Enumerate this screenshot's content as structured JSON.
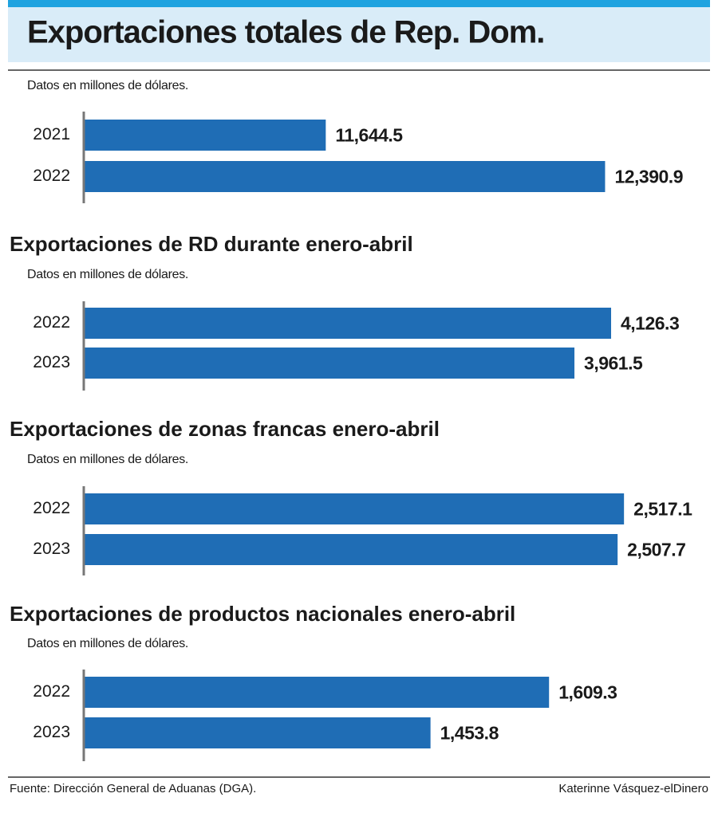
{
  "chart_data": [
    {
      "type": "bar",
      "orientation": "horizontal",
      "title": "Exportaciones totales de Rep. Dom.",
      "subtitle": "Datos en millones de dólares.",
      "categories": [
        "2021",
        "2022"
      ],
      "values": [
        11644.5,
        12390.9
      ],
      "value_labels": [
        "11,644.5",
        "12,390.9"
      ],
      "color": "#1f6db5",
      "xlim": [
        11000,
        12650
      ]
    },
    {
      "type": "bar",
      "orientation": "horizontal",
      "title": "Exportaciones de RD durante enero-abril",
      "subtitle": "Datos en millones de dólares.",
      "categories": [
        "2022",
        "2023"
      ],
      "values": [
        4126.3,
        3961.5
      ],
      "value_labels": [
        "4,126.3",
        "3,961.5"
      ],
      "color": "#1f6db5",
      "xlim": [
        1760,
        4535
      ]
    },
    {
      "type": "bar",
      "orientation": "horizontal",
      "title": "Exportaciones de zonas francas enero-abril",
      "subtitle": "Datos en millones de dólares.",
      "categories": [
        "2022",
        "2023"
      ],
      "values": [
        2517.1,
        2507.7
      ],
      "value_labels": [
        "2,517.1",
        "2,507.7"
      ],
      "color": "#1f6db5",
      "xlim": [
        1723,
        2632
      ]
    },
    {
      "type": "bar",
      "orientation": "horizontal",
      "title": "Exportaciones de productos nacionales enero-abril",
      "subtitle": "Datos en millones de dólares.",
      "categories": [
        "2022",
        "2023"
      ],
      "values": [
        1609.3,
        1453.8
      ],
      "value_labels": [
        "1,609.3",
        "1,453.8"
      ],
      "color": "#1f6db5",
      "xlim": [
        1000,
        1810
      ]
    }
  ],
  "source": "Fuente: Dirección General de Aduanas (DGA).",
  "credit": "Katerinne Vásquez-elDinero"
}
